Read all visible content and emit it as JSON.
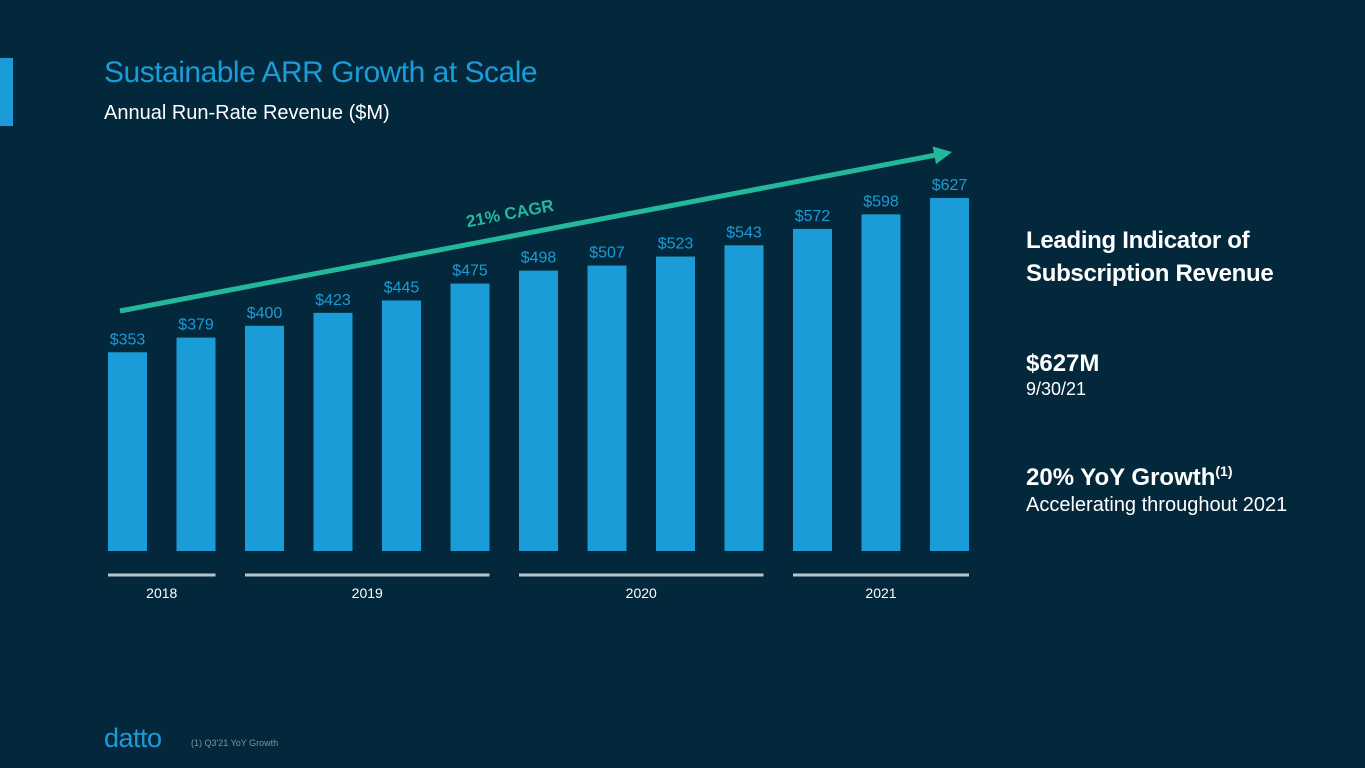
{
  "slide": {
    "title": "Sustainable ARR Growth at Scale",
    "subtitle": "Annual Run-Rate Revenue ($M)"
  },
  "colors": {
    "background": "#03283b",
    "bar": "#1a9cd8",
    "cagr_arrow": "#23b89a",
    "year_line": "#b9c3ca"
  },
  "chart_data": {
    "type": "bar",
    "title": "Annual Run-Rate Revenue ($M)",
    "xlabel": "",
    "ylabel": "",
    "grid": false,
    "ylim": [
      0,
      627
    ],
    "values": [
      353,
      379,
      400,
      423,
      445,
      475,
      498,
      507,
      523,
      543,
      572,
      598,
      627
    ],
    "value_labels": [
      "$353",
      "$379",
      "$400",
      "$423",
      "$445",
      "$475",
      "$498",
      "$507",
      "$523",
      "$543",
      "$572",
      "$598",
      "$627"
    ],
    "year_groups": [
      {
        "label": "2018",
        "first_bar": 0,
        "last_bar": 1
      },
      {
        "label": "2019",
        "first_bar": 2,
        "last_bar": 5
      },
      {
        "label": "2020",
        "first_bar": 6,
        "last_bar": 9
      },
      {
        "label": "2021",
        "first_bar": 10,
        "last_bar": 12
      }
    ],
    "trend_annotation": "21% CAGR"
  },
  "sidebar": {
    "heading_line1": "Leading Indicator of",
    "heading_line2": "Subscription Revenue",
    "value": "$627M",
    "date": "9/30/21",
    "growth": "20% YoY Growth",
    "growth_footnote_ref": "(1)",
    "growth_note": "Accelerating throughout 2021"
  },
  "footer": {
    "logo": "datto",
    "footnote": "(1) Q3'21 YoY Growth"
  }
}
